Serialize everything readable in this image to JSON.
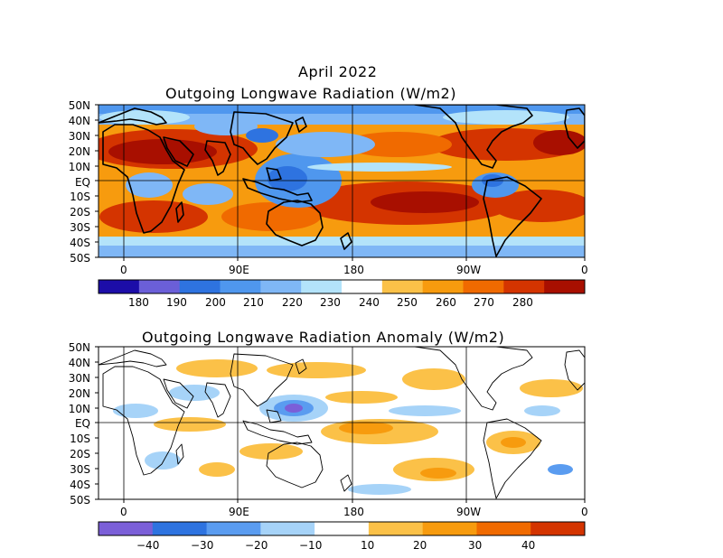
{
  "header": {
    "date_title": "April 2022"
  },
  "panels": [
    {
      "title": "Outgoing Longwave Radiation (W/m2)",
      "lat_labels": [
        "50N",
        "40N",
        "30N",
        "20N",
        "10N",
        "EQ",
        "10S",
        "20S",
        "30S",
        "40S",
        "50S"
      ],
      "lon_labels": [
        "0",
        "90E",
        "180",
        "90W",
        "0"
      ],
      "colorbar": {
        "labels": [
          "180",
          "190",
          "200",
          "210",
          "220",
          "230",
          "240",
          "250",
          "260",
          "270",
          "280"
        ],
        "colors": [
          "#1c0da8",
          "#6b5fd8",
          "#2e73e0",
          "#4f97ee",
          "#7fb7f6",
          "#b3e3fa",
          "#ffffff",
          "#fbc148",
          "#f79b0e",
          "#f06a00",
          "#d43400",
          "#a80f00"
        ]
      }
    },
    {
      "title": "Outgoing Longwave Radiation Anomaly (W/m2)",
      "lat_labels": [
        "50N",
        "40N",
        "30N",
        "20N",
        "10N",
        "EQ",
        "10S",
        "20S",
        "30S",
        "40S",
        "50S"
      ],
      "lon_labels": [
        "0",
        "90E",
        "180",
        "90W",
        "0"
      ],
      "colorbar": {
        "labels": [
          "−40",
          "−30",
          "−20",
          "−10",
          "10",
          "20",
          "30",
          "40"
        ],
        "colors": [
          "#7b5fd8",
          "#2e73e0",
          "#5a9cf0",
          "#a6d3f8",
          "#ffffff",
          "#fbc148",
          "#f79b0e",
          "#f06a00",
          "#d43400"
        ]
      }
    }
  ]
}
